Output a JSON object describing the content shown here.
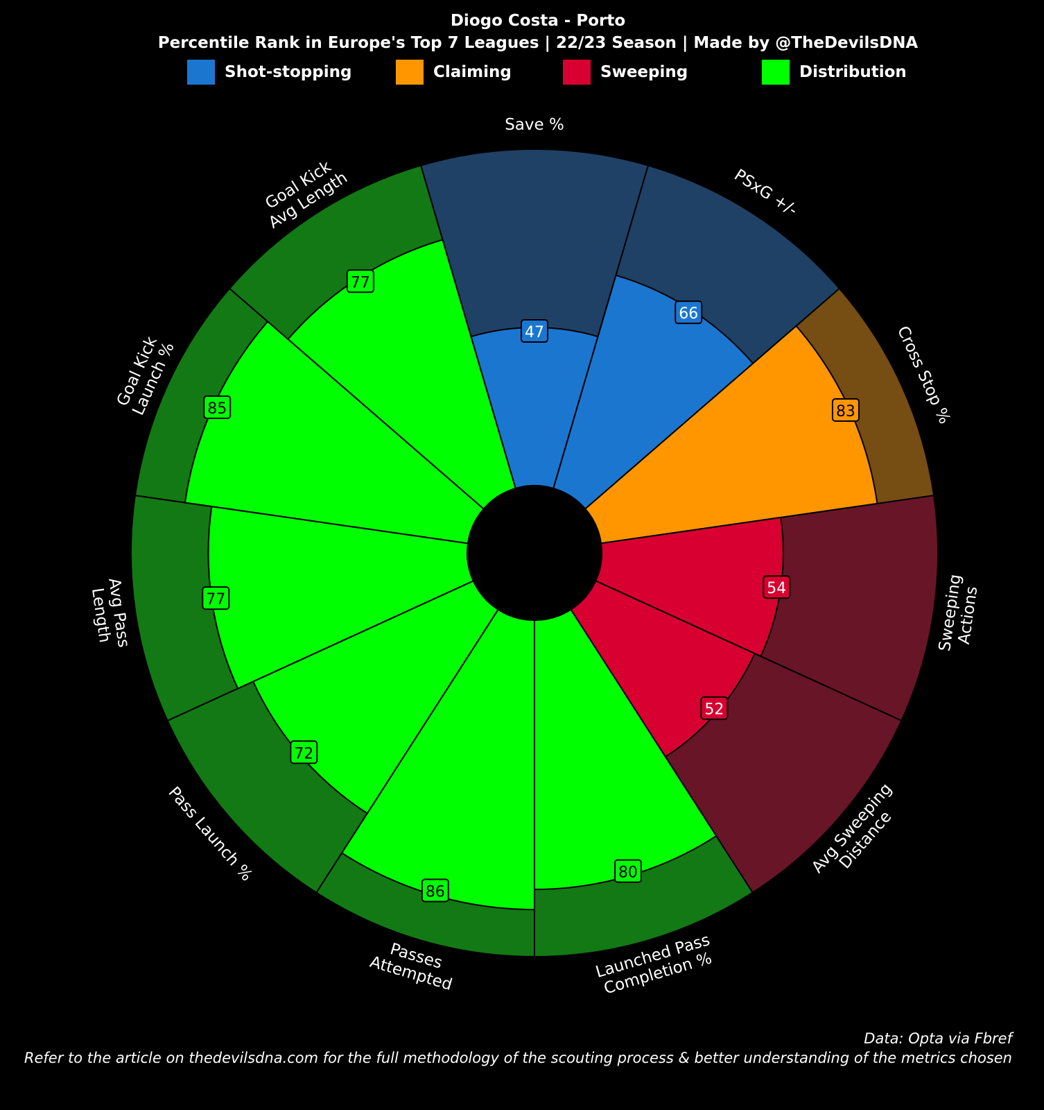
{
  "header": {
    "title": "Diogo Costa - Porto",
    "subtitle": "Percentile Rank in Europe's Top 7 Leagues | 22/23 Season | Made by @TheDevilsDNA"
  },
  "legend": [
    {
      "label": "Shot-stopping",
      "color": "#1b76d0"
    },
    {
      "label": "Claiming",
      "color": "#ff9600"
    },
    {
      "label": "Sweeping",
      "color": "#d80030"
    },
    {
      "label": "Distribution",
      "color": "#00ff00"
    }
  ],
  "chart_data": {
    "type": "bar",
    "subtype": "polar-pizza",
    "title": "Diogo Costa - Porto",
    "subtitle": "Percentile Rank in Europe's Top 7 Leagues | 22/23 Season | Made by @TheDevilsDNA",
    "ylim": [
      0,
      100
    ],
    "categories": [
      "Save %",
      "PSxG +/-",
      "Cross Stop %",
      "Sweeping Actions",
      "Avg Sweeping Distance",
      "Launched Pass Completion %",
      "Passes Attempted",
      "Pass Launch %",
      "Avg Pass Length",
      "Goal Kick Launch %",
      "Goal Kick Avg Length"
    ],
    "label_lines": [
      [
        "Save %"
      ],
      [
        "PSxG +/-"
      ],
      [
        "Cross Stop %"
      ],
      [
        "Sweeping",
        "Actions"
      ],
      [
        "Avg Sweeping",
        "Distance"
      ],
      [
        "Launched Pass",
        "Completion %"
      ],
      [
        "Passes",
        "Attempted"
      ],
      [
        "Pass Launch %"
      ],
      [
        "Avg Pass",
        "Length"
      ],
      [
        "Goal Kick",
        "Launch %"
      ],
      [
        "Goal Kick",
        "Avg Length"
      ]
    ],
    "values": [
      47,
      66,
      83,
      54,
      52,
      80,
      86,
      72,
      77,
      85,
      77
    ],
    "groups": [
      "Shot-stopping",
      "Shot-stopping",
      "Claiming",
      "Sweeping",
      "Sweeping",
      "Distribution",
      "Distribution",
      "Distribution",
      "Distribution",
      "Distribution",
      "Distribution"
    ],
    "group_colors": {
      "Shot-stopping": {
        "fill": "#1b76d0",
        "background": "#1f4166"
      },
      "Claiming": {
        "fill": "#ff9600",
        "background": "#764d12"
      },
      "Sweeping": {
        "fill": "#d80030",
        "background": "#681527"
      },
      "Distribution": {
        "fill": "#00ff00",
        "background": "#137914"
      }
    }
  },
  "footer": {
    "source": "Data: Opta via Fbref",
    "note": "Refer to the article on thedevilsdna.com for the full methodology of the scouting process & better understanding of the metrics chosen"
  }
}
